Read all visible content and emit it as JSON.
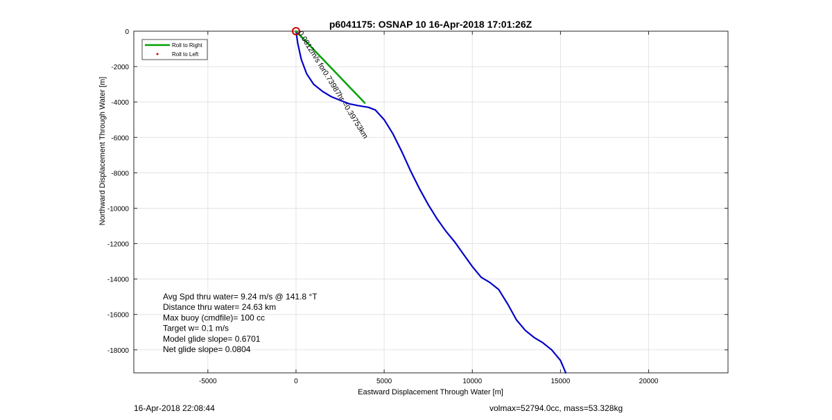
{
  "chart_data": {
    "type": "line",
    "title": "p6041175: OSNAP 10 16-Apr-2018 17:01:26Z",
    "xlabel": "Eastward Displacement Through Water [m]",
    "ylabel": "Northward Displacement Through Water [m]",
    "xlim": [
      -9200,
      24500
    ],
    "ylim": [
      -19300,
      0
    ],
    "grid": true,
    "xticks": [
      -5000,
      0,
      5000,
      10000,
      15000,
      20000
    ],
    "xtick_labels": [
      "-5000",
      "0",
      "5000",
      "10000",
      "15000",
      "20000"
    ],
    "yticks": [
      0,
      -2000,
      -4000,
      -6000,
      -8000,
      -10000,
      -12000,
      -14000,
      -16000,
      -18000
    ],
    "ytick_labels": [
      "0",
      "-2000",
      "-4000",
      "-6000",
      "-8000",
      "-10000",
      "-12000",
      "-14000",
      "-16000",
      "-18000"
    ],
    "legend": {
      "placement": "top-left",
      "entries": [
        {
          "label": "Roll to Right",
          "color": "#00a000",
          "style": "line"
        },
        {
          "label": "Roll to Left",
          "color": "#cc0000",
          "style": "dot"
        }
      ]
    },
    "series": [
      {
        "color": "#0000c8",
        "x": [
          0,
          100,
          300,
          600,
          1000,
          1500,
          2000,
          2500,
          3000,
          3500,
          4100,
          4500,
          5000,
          5500,
          6000,
          6500,
          7000,
          7500,
          8000,
          8500,
          9000,
          9500,
          10000,
          10500,
          11000,
          11500,
          12000,
          12500,
          13000,
          13500,
          14000,
          14500,
          15000,
          15300
        ],
        "y": [
          0,
          -700,
          -1600,
          -2400,
          -3000,
          -3400,
          -3700,
          -3900,
          -4100,
          -4200,
          -4300,
          -4450,
          -5000,
          -5800,
          -6800,
          -7900,
          -8900,
          -9800,
          -10600,
          -11300,
          -11900,
          -12600,
          -13300,
          -13900,
          -14200,
          -14600,
          -15400,
          -16300,
          -16900,
          -17300,
          -17600,
          -18000,
          -18600,
          -19300
        ]
      },
      {
        "color": "#00a000",
        "x": [
          0,
          3900
        ],
        "y": [
          0,
          -4050
        ]
      }
    ],
    "start_marker": {
      "x": 0,
      "y": 0,
      "color": "#cc0000"
    },
    "annotations": [
      {
        "text": "0.0812m/s for0.73987hr =0.39753km",
        "x": 100,
        "y": -100,
        "rotation_deg": 58
      }
    ],
    "stats": [
      "Avg Spd thru water=  9.24 m/s @ 141.8 °T",
      "Distance thru water= 24.63 km",
      "Max buoy (cmdfile)= 100 cc",
      "Target w= 0.1 m/s",
      "Model glide slope= 0.6701",
      "Net glide slope= 0.0804"
    ]
  },
  "footer": {
    "left": "16-Apr-2018 22:08:44",
    "right": "volmax=52794.0cc, mass=53.328kg"
  }
}
